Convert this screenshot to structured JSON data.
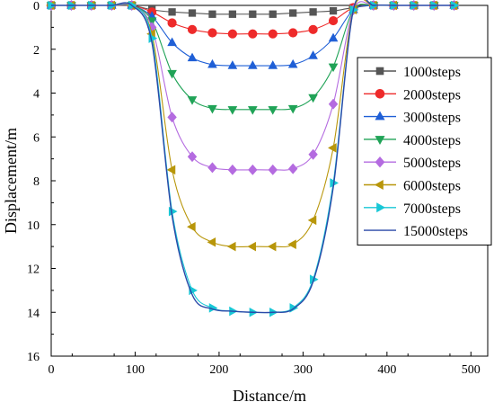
{
  "chart_data": {
    "type": "line",
    "xlabel": "Distance/m",
    "ylabel": "Displacement/m",
    "xlim": [
      0,
      520
    ],
    "ylim": [
      0,
      16
    ],
    "y_inverted": true,
    "x_ticks": [
      0,
      100,
      200,
      300,
      400,
      500
    ],
    "y_ticks": [
      0,
      2,
      4,
      6,
      8,
      10,
      12,
      14,
      16
    ],
    "grid": false,
    "legend_position": "right",
    "x": [
      0,
      24,
      48,
      72,
      96,
      120,
      144,
      168,
      192,
      216,
      240,
      264,
      288,
      312,
      336,
      360,
      384,
      408,
      432,
      456,
      480
    ],
    "series": [
      {
        "name": "1000steps",
        "color": "#555555",
        "marker": "square",
        "values": [
          0,
          0,
          0,
          0,
          0,
          0.2,
          0.3,
          0.35,
          0.4,
          0.4,
          0.4,
          0.4,
          0.35,
          0.3,
          0.25,
          0.1,
          0,
          0,
          0,
          0,
          0
        ]
      },
      {
        "name": "2000steps",
        "color": "#ee2a2a",
        "marker": "circle",
        "values": [
          0,
          0,
          0,
          0,
          0,
          0.3,
          0.8,
          1.1,
          1.25,
          1.3,
          1.3,
          1.3,
          1.25,
          1.1,
          0.7,
          0.1,
          0,
          0,
          0,
          0,
          0
        ]
      },
      {
        "name": "3000steps",
        "color": "#1f5fd6",
        "marker": "triangle-up",
        "values": [
          0,
          0,
          0,
          0,
          0,
          0.5,
          1.7,
          2.4,
          2.7,
          2.75,
          2.75,
          2.75,
          2.7,
          2.3,
          1.5,
          0.2,
          0,
          0,
          0,
          0,
          0
        ]
      },
      {
        "name": "4000steps",
        "color": "#20a357",
        "marker": "triangle-down",
        "values": [
          0,
          0,
          0,
          0,
          0,
          0.7,
          3.1,
          4.3,
          4.7,
          4.75,
          4.75,
          4.75,
          4.7,
          4.2,
          2.8,
          0.2,
          0,
          0,
          0,
          0,
          0
        ]
      },
      {
        "name": "5000steps",
        "color": "#b46be0",
        "marker": "diamond",
        "values": [
          0,
          0,
          0,
          0,
          0,
          1.0,
          5.1,
          6.9,
          7.4,
          7.5,
          7.5,
          7.5,
          7.45,
          6.8,
          4.5,
          0.2,
          0,
          0,
          0,
          0,
          0
        ]
      },
      {
        "name": "6000steps",
        "color": "#b8960a",
        "marker": "triangle-left",
        "values": [
          0,
          0,
          0,
          0,
          0,
          1.3,
          7.5,
          10.1,
          10.8,
          11.0,
          11.0,
          11.0,
          10.9,
          9.8,
          6.5,
          0.2,
          0,
          0,
          0,
          0,
          0
        ]
      },
      {
        "name": "7000steps",
        "color": "#18c7d6",
        "marker": "triangle-right",
        "values": [
          0,
          0,
          0,
          0,
          0,
          1.5,
          9.4,
          13.0,
          13.8,
          13.95,
          14.0,
          14.0,
          13.8,
          12.5,
          8.1,
          0.2,
          0,
          0,
          0,
          0,
          0
        ]
      },
      {
        "name": "15000steps",
        "color": "#2a49a8",
        "marker": "none",
        "values": [
          0,
          0,
          0,
          0,
          0,
          1.7,
          9.6,
          13.2,
          13.85,
          13.95,
          14.0,
          14.0,
          13.85,
          12.6,
          8.3,
          0.2,
          0,
          0,
          0,
          0,
          0
        ]
      }
    ]
  }
}
